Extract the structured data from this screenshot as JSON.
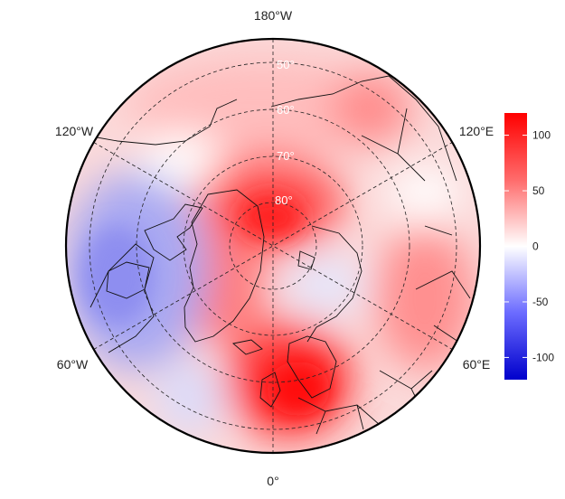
{
  "map": {
    "projection": "north-polar stereographic",
    "longitude_labels": {
      "top": "180°W",
      "upper_left": "120°W",
      "upper_right": "120°E",
      "lower_left": "60°W",
      "lower_right": "60°E",
      "bottom": "0°"
    },
    "latitude_labels": [
      "50°",
      "60°",
      "70°",
      "80°"
    ]
  },
  "colorbar": {
    "ticks": [
      "100",
      "50",
      "0",
      "-50",
      "-100"
    ],
    "min": -120,
    "max": 120,
    "colors": {
      "high": "#ff0000",
      "mid": "#ffffff",
      "low": "#0000cc"
    }
  }
}
